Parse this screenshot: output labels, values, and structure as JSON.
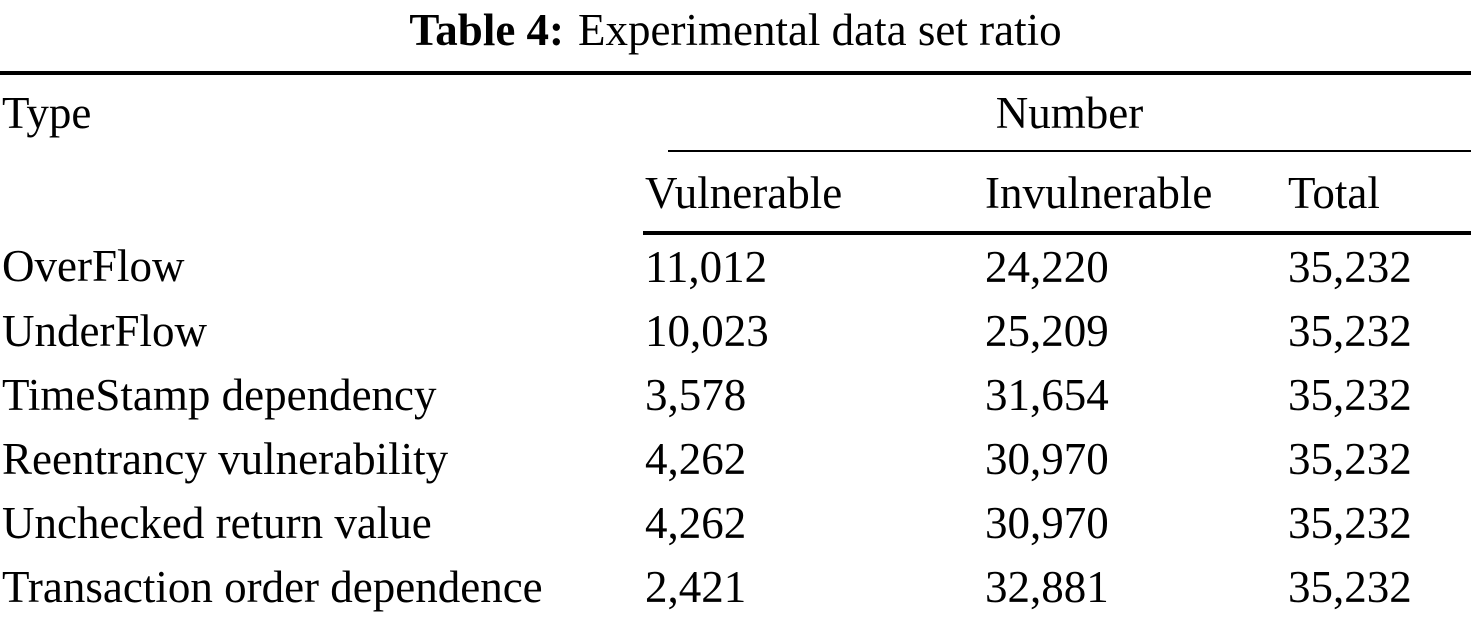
{
  "caption": {
    "label": "Table 4:",
    "text": "Experimental data set ratio"
  },
  "table": {
    "type_header": "Type",
    "group_header": "Number",
    "sub_headers": [
      "Vulnerable",
      "Invulnerable",
      "Total"
    ],
    "rows": [
      [
        "OverFlow",
        "11,012",
        "24,220",
        "35,232"
      ],
      [
        "UnderFlow",
        "10,023",
        "25,209",
        "35,232"
      ],
      [
        "TimeStamp dependency",
        "3,578",
        "31,654",
        "35,232"
      ],
      [
        "Reentrancy vulnerability",
        "4,262",
        "30,970",
        "35,232"
      ],
      [
        "Unchecked return value",
        "4,262",
        "30,970",
        "35,232"
      ],
      [
        "Transaction order dependence",
        "2,421",
        "32,881",
        "35,232"
      ]
    ]
  },
  "colors": {
    "text": "#000000",
    "background": "#ffffff",
    "rule": "#000000"
  },
  "chart_data": {
    "type": "table",
    "title": "Table 4: Experimental data set ratio",
    "columns": [
      "Type",
      "Vulnerable",
      "Invulnerable",
      "Total"
    ],
    "column_groups": [
      {
        "label": "Number",
        "spans": [
          "Vulnerable",
          "Invulnerable",
          "Total"
        ]
      }
    ],
    "rows": [
      {
        "type": "OverFlow",
        "vulnerable": 11012,
        "invulnerable": 24220,
        "total": 35232
      },
      {
        "type": "UnderFlow",
        "vulnerable": 10023,
        "invulnerable": 25209,
        "total": 35232
      },
      {
        "type": "TimeStamp dependency",
        "vulnerable": 3578,
        "invulnerable": 31654,
        "total": 35232
      },
      {
        "type": "Reentrancy vulnerability",
        "vulnerable": 4262,
        "invulnerable": 30970,
        "total": 35232
      },
      {
        "type": "Unchecked return value",
        "vulnerable": 4262,
        "invulnerable": 30970,
        "total": 35232
      },
      {
        "type": "Transaction order dependence",
        "vulnerable": 2421,
        "invulnerable": 32881,
        "total": 35232
      }
    ]
  }
}
